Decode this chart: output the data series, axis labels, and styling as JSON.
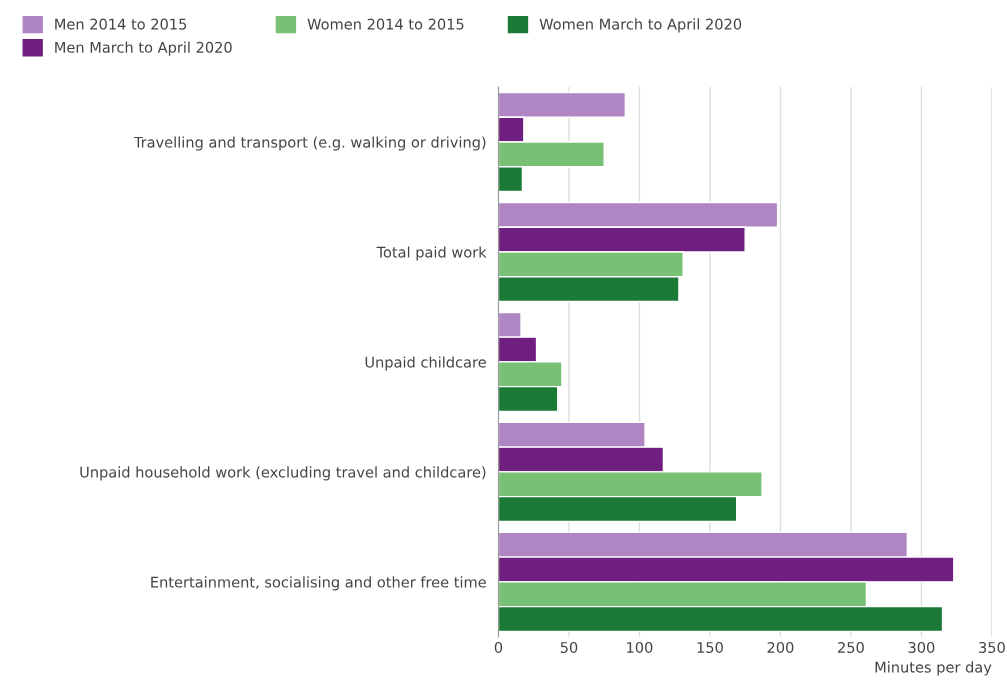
{
  "chart_data": {
    "type": "bar",
    "orientation": "horizontal",
    "xlabel": "Minutes per day",
    "categories": [
      "Travelling and transport (e.g. walking or driving)",
      "Total paid work",
      "Unpaid childcare",
      "Unpaid household work (excluding travel and childcare)",
      "Entertainment, socialising and other free time"
    ],
    "series": [
      {
        "name": "Men 2014 to 2015",
        "color": "#b085c4",
        "values": [
          90,
          198,
          16,
          104,
          290
        ]
      },
      {
        "name": "Men March to April 2020",
        "color": "#6f1f80",
        "values": [
          18,
          175,
          27,
          117,
          323
        ]
      },
      {
        "name": "Women 2014 to 2015",
        "color": "#77c074",
        "values": [
          75,
          131,
          45,
          187,
          261
        ]
      },
      {
        "name": "Women March to April 2020",
        "color": "#1a7a36",
        "values": [
          17,
          128,
          42,
          169,
          315
        ]
      }
    ],
    "xlim": [
      0,
      350
    ],
    "xticks": [
      0,
      50,
      100,
      150,
      200,
      250,
      300,
      350
    ],
    "grid": "x",
    "legend": "top"
  }
}
